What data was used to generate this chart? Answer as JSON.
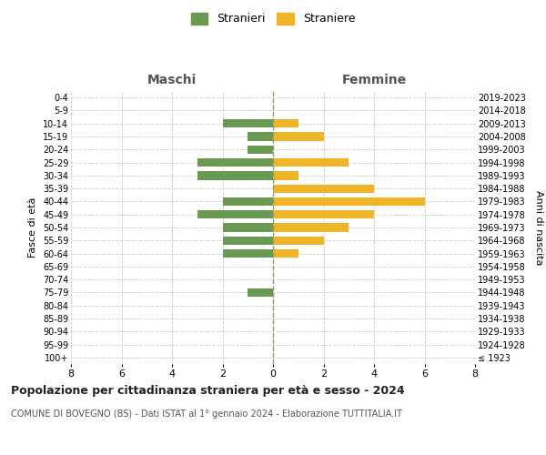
{
  "age_groups": [
    "100+",
    "95-99",
    "90-94",
    "85-89",
    "80-84",
    "75-79",
    "70-74",
    "65-69",
    "60-64",
    "55-59",
    "50-54",
    "45-49",
    "40-44",
    "35-39",
    "30-34",
    "25-29",
    "20-24",
    "15-19",
    "10-14",
    "5-9",
    "0-4"
  ],
  "birth_years": [
    "≤ 1923",
    "1924-1928",
    "1929-1933",
    "1934-1938",
    "1939-1943",
    "1944-1948",
    "1949-1953",
    "1954-1958",
    "1959-1963",
    "1964-1968",
    "1969-1973",
    "1974-1978",
    "1979-1983",
    "1984-1988",
    "1989-1993",
    "1994-1998",
    "1999-2003",
    "2004-2008",
    "2009-2013",
    "2014-2018",
    "2019-2023"
  ],
  "maschi": [
    0,
    0,
    0,
    0,
    0,
    1,
    0,
    0,
    2,
    2,
    2,
    3,
    2,
    0,
    3,
    3,
    1,
    1,
    2,
    0,
    0
  ],
  "femmine": [
    0,
    0,
    0,
    0,
    0,
    0,
    0,
    0,
    1,
    2,
    3,
    4,
    6,
    4,
    1,
    3,
    0,
    2,
    1,
    0,
    0
  ],
  "color_maschi": "#6a9a52",
  "color_femmine": "#f0b429",
  "title": "Popolazione per cittadinanza straniera per età e sesso - 2024",
  "subtitle": "COMUNE DI BOVEGNO (BS) - Dati ISTAT al 1° gennaio 2024 - Elaborazione TUTTITALIA.IT",
  "ylabel_left": "Fasce di età",
  "ylabel_right": "Anni di nascita",
  "xlabel_maschi": "Maschi",
  "xlabel_femmine": "Femmine",
  "legend_stranieri": "Stranieri",
  "legend_straniere": "Straniere",
  "xlim": 8,
  "background_color": "#ffffff",
  "grid_color": "#cccccc"
}
